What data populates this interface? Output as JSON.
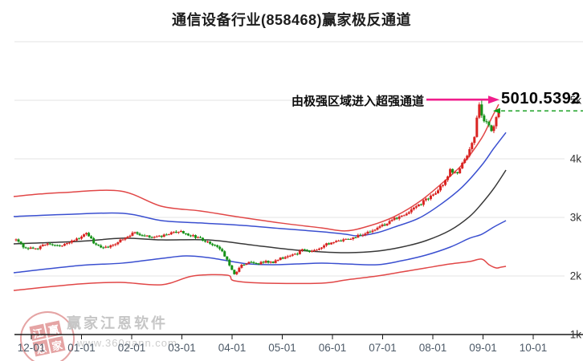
{
  "page": {
    "title": "通信设备行业(858468)赢家极反通道"
  },
  "annotation": {
    "text": "由极强区域进入超强通道",
    "price_label": "5010.5392",
    "arrow_color": "#f01e8c",
    "dashed_color": "#0a9a14",
    "dashed_value": 4820
  },
  "watermark": {
    "seal_chars": [
      "江",
      "赢",
      "恩",
      "家"
    ],
    "brand": "赢家江恩软件",
    "url": "www.360gann.com"
  },
  "chart_data": {
    "type": "candlestick",
    "title": "通信设备行业(858468)赢家极反通道",
    "x_unit": "trading-day-index",
    "x_tick_labels": [
      "12-01",
      "01-01",
      "02-01",
      "03-01",
      "04-01",
      "05-01",
      "06-01",
      "07-01",
      "08-01",
      "09-01",
      "10-01"
    ],
    "y_tick_labels": [
      "1k",
      "2k",
      "3k",
      "4k",
      "5k"
    ],
    "y_tick_values": [
      1000,
      2000,
      3000,
      4000,
      5000
    ],
    "ylim": [
      1000,
      6000
    ],
    "grid": true,
    "legend": false,
    "candle_count": 200,
    "last_price": 5010.5392,
    "last_close": 4820,
    "forced_high": {
      "day": 192,
      "value": 5010.5392
    },
    "close_anchors": [
      [
        0,
        2620
      ],
      [
        3,
        2500
      ],
      [
        8,
        2455
      ],
      [
        13,
        2560
      ],
      [
        18,
        2510
      ],
      [
        23,
        2600
      ],
      [
        26,
        2650
      ],
      [
        29,
        2745
      ],
      [
        32,
        2570
      ],
      [
        36,
        2480
      ],
      [
        40,
        2520
      ],
      [
        45,
        2660
      ],
      [
        49,
        2740
      ],
      [
        52,
        2700
      ],
      [
        56,
        2640
      ],
      [
        60,
        2680
      ],
      [
        64,
        2740
      ],
      [
        68,
        2770
      ],
      [
        71,
        2700
      ],
      [
        76,
        2640
      ],
      [
        80,
        2550
      ],
      [
        84,
        2460
      ],
      [
        86,
        2350
      ],
      [
        89,
        2120
      ],
      [
        90,
        2030
      ],
      [
        93,
        2180
      ],
      [
        96,
        2250
      ],
      [
        99,
        2200
      ],
      [
        103,
        2250
      ],
      [
        106,
        2230
      ],
      [
        109,
        2300
      ],
      [
        113,
        2340
      ],
      [
        116,
        2380
      ],
      [
        118,
        2450
      ],
      [
        122,
        2420
      ],
      [
        125,
        2480
      ],
      [
        128,
        2540
      ],
      [
        132,
        2590
      ],
      [
        136,
        2630
      ],
      [
        141,
        2680
      ],
      [
        145,
        2740
      ],
      [
        149,
        2820
      ],
      [
        153,
        2900
      ],
      [
        157,
        3000
      ],
      [
        161,
        3080
      ],
      [
        165,
        3180
      ],
      [
        169,
        3300
      ],
      [
        173,
        3420
      ],
      [
        176,
        3560
      ],
      [
        179,
        3800
      ],
      [
        182,
        3750
      ],
      [
        185,
        4000
      ],
      [
        187,
        4150
      ],
      [
        189,
        4400
      ],
      [
        190,
        4700
      ],
      [
        191,
        4950
      ],
      [
        192,
        4720
      ],
      [
        194,
        4600
      ],
      [
        196,
        4480
      ],
      [
        198,
        4700
      ],
      [
        199,
        4820
      ]
    ],
    "channel": {
      "upper_outer": {
        "name": "extreme-strong-line-top",
        "color": "#e14747",
        "points": [
          [
            -1,
            3356
          ],
          [
            10,
            3400
          ],
          [
            20,
            3425
          ],
          [
            43,
            3450
          ],
          [
            60,
            3190
          ],
          [
            76,
            3110
          ],
          [
            93,
            3000
          ],
          [
            109,
            2905
          ],
          [
            126,
            2820
          ],
          [
            136,
            2770
          ],
          [
            146,
            2860
          ],
          [
            156,
            3015
          ],
          [
            166,
            3260
          ],
          [
            175,
            3560
          ],
          [
            184,
            3905
          ],
          [
            192,
            4355
          ],
          [
            196,
            4690
          ],
          [
            199,
            4930
          ]
        ]
      },
      "upper_inner": {
        "name": "strong-line-top",
        "color": "#3a4fd0",
        "points": [
          [
            -1,
            3015
          ],
          [
            20,
            3050
          ],
          [
            44,
            3070
          ],
          [
            60,
            2945
          ],
          [
            76,
            2905
          ],
          [
            93,
            2865
          ],
          [
            109,
            2810
          ],
          [
            126,
            2755
          ],
          [
            136,
            2712
          ],
          [
            141,
            2685
          ],
          [
            149,
            2740
          ],
          [
            156,
            2835
          ],
          [
            166,
            2985
          ],
          [
            175,
            3220
          ],
          [
            184,
            3520
          ],
          [
            192,
            3890
          ],
          [
            197,
            4180
          ],
          [
            202,
            4450
          ]
        ]
      },
      "middle": {
        "name": "mid-line",
        "color": "#383838",
        "points": [
          [
            -1,
            2548
          ],
          [
            26,
            2590
          ],
          [
            44,
            2645
          ],
          [
            60,
            2616
          ],
          [
            79,
            2616
          ],
          [
            96,
            2535
          ],
          [
            113,
            2452
          ],
          [
            126,
            2411
          ],
          [
            137,
            2397
          ],
          [
            149,
            2425
          ],
          [
            159,
            2493
          ],
          [
            169,
            2603
          ],
          [
            179,
            2781
          ],
          [
            187,
            3015
          ],
          [
            192,
            3235
          ],
          [
            197,
            3495
          ],
          [
            202,
            3808
          ]
        ]
      },
      "lower_inner": {
        "name": "weak-line-bottom",
        "color": "#3a4fd0",
        "points": [
          [
            -1,
            2055
          ],
          [
            26,
            2178
          ],
          [
            44,
            2220
          ],
          [
            60,
            2300
          ],
          [
            70,
            2342
          ],
          [
            79,
            2315
          ],
          [
            89,
            2247
          ],
          [
            96,
            2205
          ],
          [
            106,
            2192
          ],
          [
            116,
            2205
          ],
          [
            126,
            2220
          ],
          [
            136,
            2205
          ],
          [
            149,
            2192
          ],
          [
            159,
            2260
          ],
          [
            169,
            2356
          ],
          [
            179,
            2493
          ],
          [
            187,
            2644
          ],
          [
            192,
            2712
          ],
          [
            197,
            2836
          ],
          [
            202,
            2945
          ]
        ]
      },
      "lower_outer": {
        "name": "extreme-weak-line-bottom",
        "color": "#e14747",
        "points": [
          [
            -1,
            1753
          ],
          [
            26,
            1863
          ],
          [
            43,
            1890
          ],
          [
            60,
            1850
          ],
          [
            73,
            2000
          ],
          [
            87,
            2014
          ],
          [
            90,
            1918
          ],
          [
            103,
            1877
          ],
          [
            126,
            1877
          ],
          [
            136,
            1932
          ],
          [
            149,
            2000
          ],
          [
            159,
            2068
          ],
          [
            169,
            2137
          ],
          [
            179,
            2205
          ],
          [
            187,
            2247
          ],
          [
            192,
            2288
          ],
          [
            195,
            2192
          ],
          [
            198,
            2137
          ],
          [
            200,
            2151
          ],
          [
            202,
            2164
          ]
        ]
      }
    },
    "colors": {
      "up": "#d92422",
      "down": "#169218",
      "grid": "#e3e3e3",
      "axis": "#1a1a1a",
      "x_label": "#4d5a68",
      "y_label": "#333333"
    }
  }
}
